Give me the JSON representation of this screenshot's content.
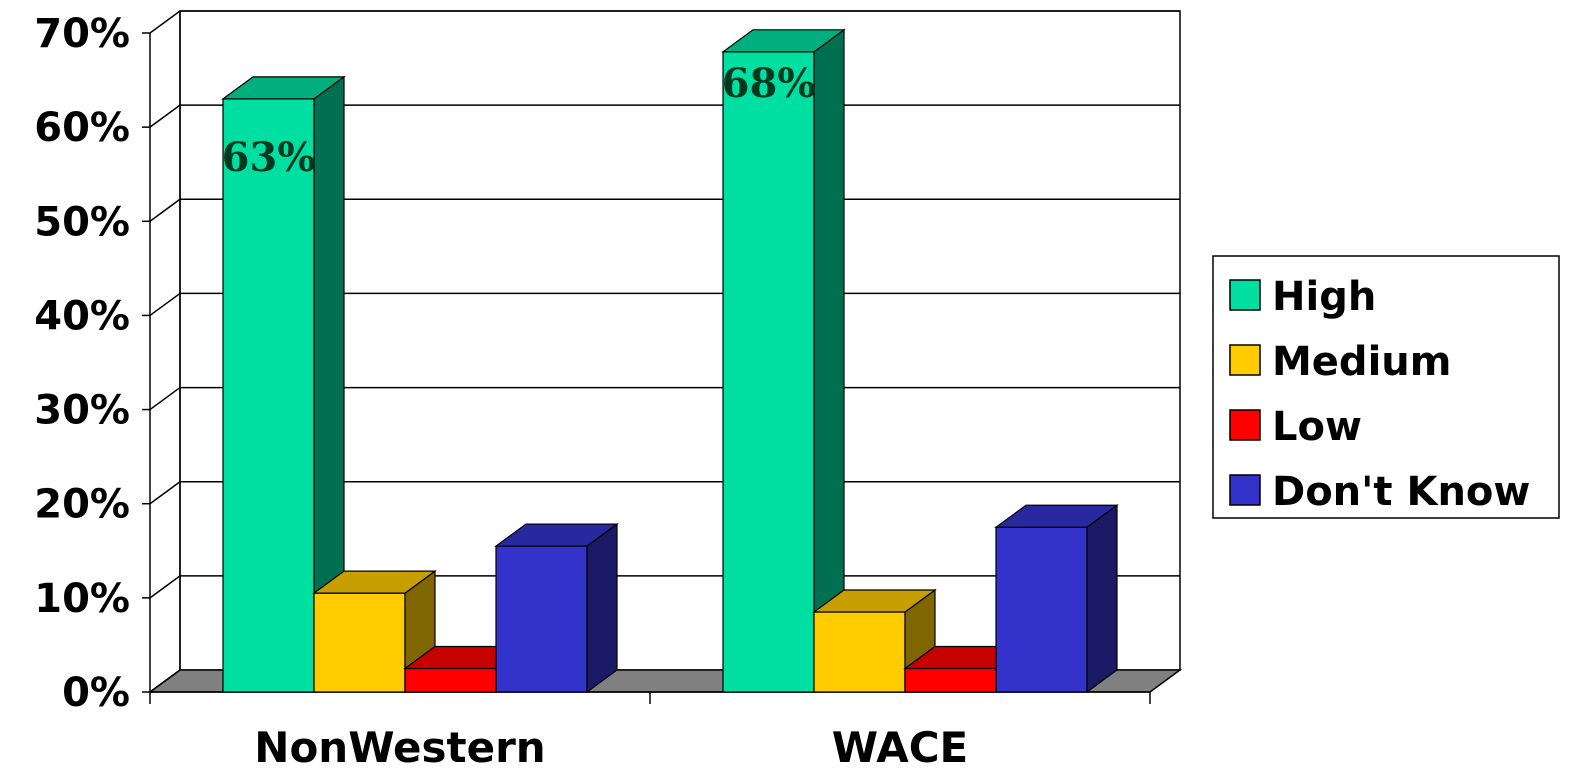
{
  "chart_data": {
    "type": "bar",
    "categories": [
      "NonWestern",
      "WACE"
    ],
    "series": [
      {
        "name": "High",
        "values": [
          63,
          68
        ],
        "color": "#00DFA2",
        "data_labels": [
          "63%",
          "68%"
        ]
      },
      {
        "name": "Medium",
        "values": [
          10.5,
          8.5
        ],
        "color": "#FFCC00"
      },
      {
        "name": "Low",
        "values": [
          2.5,
          2.5
        ],
        "color": "#FF0000"
      },
      {
        "name": "Don't Know",
        "values": [
          15.5,
          17.5
        ],
        "color": "#3333CC"
      }
    ],
    "yticks": [
      "0%",
      "10%",
      "20%",
      "30%",
      "40%",
      "50%",
      "60%",
      "70%"
    ],
    "ylim": [
      0,
      70
    ],
    "grid": true,
    "three_d": true,
    "legend_position": "right",
    "floor_color": "#808080"
  }
}
